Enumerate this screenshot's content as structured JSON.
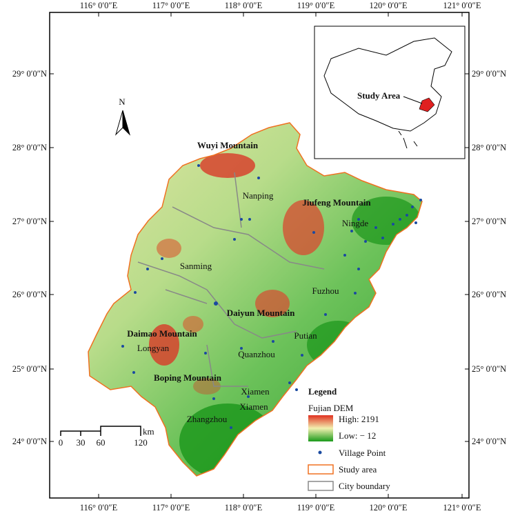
{
  "axes": {
    "lon_labels": [
      "116° 0′0″E",
      "117° 0′0″E",
      "118° 0′0″E",
      "119° 0′0″E",
      "120° 0′0″E",
      "121° 0′0″E"
    ],
    "lat_labels": [
      "29° 0′0″N",
      "28° 0′0″N",
      "27° 0′0″N",
      "26° 0′0″N",
      "25° 0′0″N",
      "24° 0′0″N"
    ]
  },
  "north_arrow": "N",
  "inset": {
    "label": "Study Area"
  },
  "mountains": [
    "Wuyi Mountain",
    "Jiufeng Mountain",
    "Daiyun Mountain",
    "Daimao Mountain",
    "Boping Mountain"
  ],
  "cities": [
    "Nanping",
    "Ningde",
    "Sanming",
    "Fuzhou",
    "Longyan",
    "Putian",
    "Quanzhou",
    "Xiamen",
    "Xiamen",
    "Zhangzhou"
  ],
  "scale_bar": {
    "ticks": [
      "0",
      "30",
      "60",
      "120"
    ],
    "unit": "km"
  },
  "legend": {
    "title": "Legend",
    "dem_title": "Fujian DEM",
    "high": "High: 2191",
    "low": "Low: − 12",
    "items": [
      "Village Point",
      "Study area",
      "City boundary"
    ]
  }
}
